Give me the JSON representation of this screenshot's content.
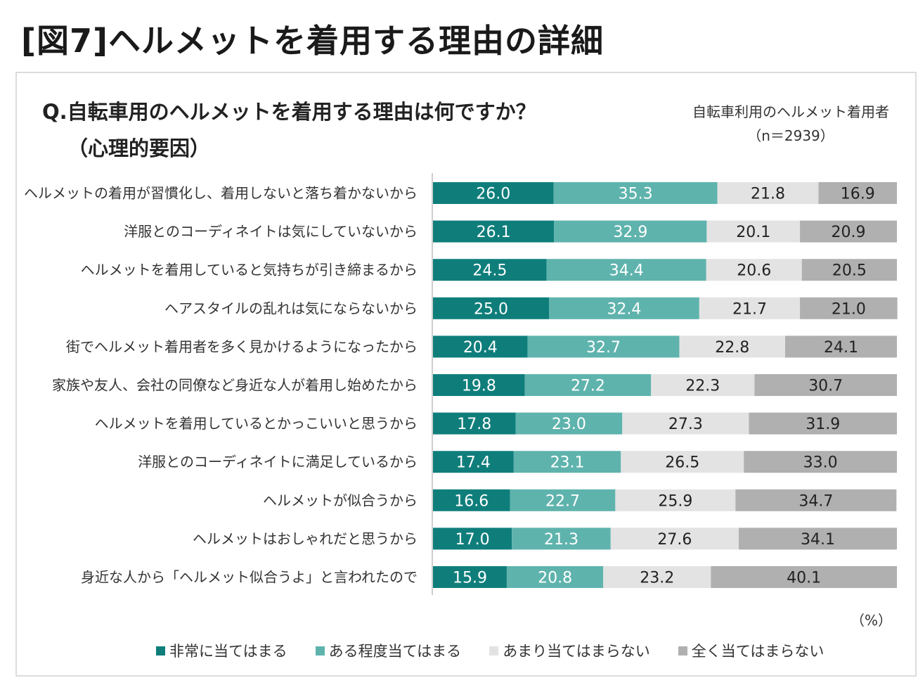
{
  "figure_title": "[図7]ヘルメットを着用する理由の詳細",
  "question_line1": "Q.自転車用のヘルメットを着用する理由は何ですか？",
  "question_line2": "（心理的要因）",
  "sample_line1": "自転車利用のヘルメット着用者",
  "sample_line2": "（n＝2939）",
  "unit_label": "（%）",
  "colors": {
    "series1": "#0f7e7b",
    "series2": "#5fb3ad",
    "series3": "#e3e3e3",
    "series4": "#b0b0b0",
    "label_light": "#ffffff",
    "label_dark": "#222222"
  },
  "chart_data": {
    "type": "bar",
    "orientation": "horizontal",
    "stacked": true,
    "xlim": [
      0,
      100
    ],
    "categories": [
      "ヘルメットの着用が習慣化し、着用しないと落ち着かないから",
      "洋服とのコーディネイトは気にしていないから",
      "ヘルメットを着用していると気持ちが引き締まるから",
      "ヘアスタイルの乱れは気にならないから",
      "街でヘルメット着用者を多く見かけるようになったから",
      "家族や友人、会社の同僚など身近な人が着用し始めたから",
      "ヘルメットを着用しているとかっこいいと思うから",
      "洋服とのコーディネイトに満足しているから",
      "ヘルメットが似合うから",
      "ヘルメットはおしゃれだと思うから",
      "身近な人から「ヘルメット似合うよ」と言われたので"
    ],
    "series": [
      {
        "name": "非常に当てはまる",
        "values": [
          26.0,
          26.1,
          24.5,
          25.0,
          20.4,
          19.8,
          17.8,
          17.4,
          16.6,
          17.0,
          15.9
        ]
      },
      {
        "name": "ある程度当てはまる",
        "values": [
          35.3,
          32.9,
          34.4,
          32.4,
          32.7,
          27.2,
          23.0,
          23.1,
          22.7,
          21.3,
          20.8
        ]
      },
      {
        "name": "あまり当てはまらない",
        "values": [
          21.8,
          20.1,
          20.6,
          21.7,
          22.8,
          22.3,
          27.3,
          26.5,
          25.9,
          27.6,
          23.2
        ]
      },
      {
        "name": "全く当てはまらない",
        "values": [
          16.9,
          20.9,
          20.5,
          21.0,
          24.1,
          30.7,
          31.9,
          33.0,
          34.7,
          34.1,
          40.1
        ]
      }
    ],
    "legend_position": "bottom"
  }
}
